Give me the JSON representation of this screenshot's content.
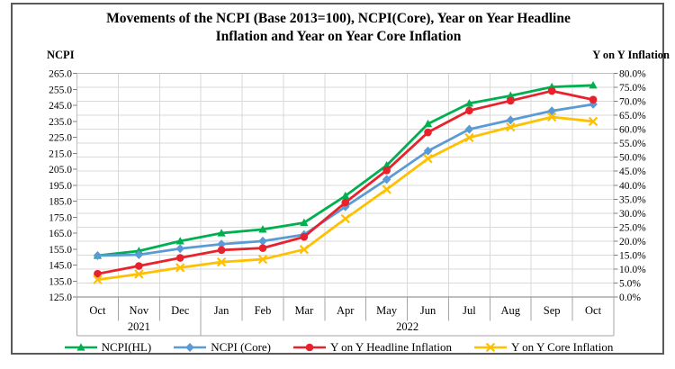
{
  "title": {
    "line1": "Movements of the NCPI (Base 2013=100), NCPI(Core), Year on Year Headline",
    "line2": "Inflation and Year on Year Core Inflation"
  },
  "chart_data": {
    "type": "line",
    "title": "Movements of the NCPI (Base 2013=100), NCPI(Core), Year on Year Headline Inflation and Year on Year Core Inflation",
    "categories": [
      "Oct",
      "Nov",
      "Dec",
      "Jan",
      "Feb",
      "Mar",
      "Apr",
      "May",
      "Jun",
      "Jul",
      "Aug",
      "Sep",
      "Oct"
    ],
    "year_groups": [
      {
        "label": "2021",
        "span": 3
      },
      {
        "label": "2022",
        "span": 10
      }
    ],
    "left_axis": {
      "label": "NCPI",
      "min": 125.0,
      "max": 265.0,
      "step": 10.0,
      "tick_labels": [
        "265.0",
        "255.0",
        "245.0",
        "235.0",
        "225.0",
        "215.0",
        "205.0",
        "195.0",
        "185.0",
        "175.0",
        "165.0",
        "155.0",
        "145.0",
        "135.0",
        "125.0"
      ]
    },
    "right_axis": {
      "label": "Y on Y Inflation",
      "min": 0.0,
      "max": 80.0,
      "step": 5.0,
      "tick_labels": [
        "80.0%",
        "75.0%",
        "70.0%",
        "65.0%",
        "60.0%",
        "55.0%",
        "50.0%",
        "45.0%",
        "40.0%",
        "35.0%",
        "30.0%",
        "25.0%",
        "20.0%",
        "15.0%",
        "10.0%",
        "5.0%",
        "0.0%"
      ]
    },
    "grid": true,
    "legend_position": "bottom",
    "series": [
      {
        "name": "NCPI(HL)",
        "axis": "left",
        "color": "#00B050",
        "marker": "triangle",
        "values": [
          150.9,
          153.8,
          160.0,
          165.0,
          167.3,
          171.5,
          188.3,
          207.4,
          233.4,
          246.2,
          251.0,
          256.5,
          257.5
        ]
      },
      {
        "name": "NCPI (Core)",
        "axis": "left",
        "color": "#5B9BD5",
        "marker": "diamond",
        "values": [
          150.9,
          151.5,
          155.3,
          158.1,
          160.0,
          164.0,
          181.5,
          198.6,
          216.4,
          230.0,
          235.8,
          241.5,
          245.6
        ]
      },
      {
        "name": "Y on Y Headline Inflation",
        "axis": "right",
        "color": "#E8222C",
        "marker": "circle",
        "values": [
          8.3,
          11.1,
          14.0,
          16.8,
          17.5,
          21.5,
          33.8,
          45.3,
          58.9,
          66.7,
          70.2,
          73.7,
          70.6
        ]
      },
      {
        "name": "Y on Y Core Inflation",
        "axis": "right",
        "color": "#FFC000",
        "marker": "x",
        "values": [
          6.2,
          8.2,
          10.5,
          12.5,
          13.5,
          17.0,
          28.0,
          38.5,
          49.5,
          57.0,
          60.8,
          64.4,
          62.8
        ]
      }
    ]
  },
  "style_colors": {
    "gridline": "#D9D9D9",
    "plot_border": "#BFBFBF",
    "axis_line": "#7F7F7F",
    "table_line": "#A6A6A6",
    "frame_border": "#595959"
  }
}
